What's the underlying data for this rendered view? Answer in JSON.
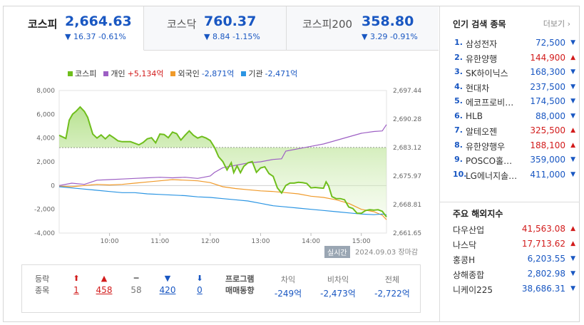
{
  "tabs": [
    {
      "name": "코스피",
      "value": "2,664.63",
      "change": "▼ 16.37 -0.61%"
    },
    {
      "name": "코스닥",
      "value": "760.37",
      "change": "▼ 8.84 -1.15%"
    },
    {
      "name": "코스피200",
      "value": "358.80",
      "change": "▼ 3.29 -0.91%"
    }
  ],
  "legend": [
    {
      "name": "코스피",
      "value": "",
      "color": "#6fbe1c"
    },
    {
      "name": "개인",
      "value": "+5,134억",
      "color": "#9d5fc4",
      "value_color": "#d21b1b"
    },
    {
      "name": "외국인",
      "value": "-2,871억",
      "color": "#f09a2a",
      "value_color": "#1957c2"
    },
    {
      "name": "기관",
      "value": "-2,471억",
      "color": "#2b95e3",
      "value_color": "#1957c2"
    }
  ],
  "chart_data": {
    "type": "line",
    "title": "",
    "x_ticks": [
      "10:00",
      "11:00",
      "12:00",
      "13:00",
      "14:00",
      "15:00"
    ],
    "y_left_ticks": [
      "8,000",
      "6,000",
      "4,000",
      "2,000",
      "0",
      "-2,000",
      "-4,000"
    ],
    "y_left_range": [
      -4000,
      8000
    ],
    "y_right_ticks": [
      "2,697.44",
      "2,690.28",
      "2,683.12",
      "2,675.97",
      "2,668.81",
      "2,661.65"
    ],
    "y_right_range": [
      2661.65,
      2697.44
    ],
    "reference_level": 2683.12,
    "x_range_minutes": [
      540,
      930
    ],
    "series": [
      {
        "name": "코스피",
        "color": "#6fbe1c",
        "axis": "right",
        "x": [
          "09:00",
          "09:08",
          "09:12",
          "09:16",
          "09:20",
          "09:25",
          "09:30",
          "09:34",
          "09:40",
          "09:45",
          "09:50",
          "09:55",
          "10:00",
          "10:05",
          "10:10",
          "10:15",
          "10:20",
          "10:25",
          "10:35",
          "10:40",
          "10:45",
          "10:50",
          "10:55",
          "11:00",
          "11:05",
          "11:10",
          "11:15",
          "11:20",
          "11:25",
          "11:30",
          "11:35",
          "11:40",
          "11:45",
          "11:50",
          "11:55",
          "12:00",
          "12:05",
          "12:10",
          "12:15",
          "12:20",
          "12:25",
          "12:28",
          "12:32",
          "12:36",
          "12:40",
          "12:45",
          "12:50",
          "12:55",
          "13:00",
          "13:05",
          "13:10",
          "13:15",
          "13:20",
          "13:25",
          "13:30",
          "13:35",
          "13:40",
          "13:45",
          "13:50",
          "13:55",
          "14:00",
          "14:05",
          "14:10",
          "14:15",
          "14:18",
          "14:21",
          "14:25",
          "14:30",
          "14:35",
          "14:40",
          "14:45",
          "14:50",
          "14:55",
          "15:00",
          "15:05",
          "15:10",
          "15:15",
          "15:20",
          "15:25",
          "15:30"
        ],
        "y": [
          2686.2,
          2685.4,
          2690.0,
          2691.5,
          2692.2,
          2693.3,
          2692.2,
          2690.7,
          2686.5,
          2685.5,
          2686.3,
          2685.3,
          2686.3,
          2685.6,
          2684.8,
          2684.6,
          2684.6,
          2684.6,
          2683.8,
          2684.4,
          2685.3,
          2685.6,
          2684.3,
          2686.5,
          2686.4,
          2685.6,
          2687.0,
          2686.6,
          2685.0,
          2686.2,
          2687.3,
          2686.2,
          2685.5,
          2685.9,
          2685.5,
          2684.9,
          2683.2,
          2680.8,
          2679.6,
          2677.5,
          2679.3,
          2676.8,
          2678.5,
          2676.8,
          2678.4,
          2679.3,
          2679.6,
          2676.9,
          2678.0,
          2678.3,
          2676.6,
          2675.9,
          2673.0,
          2671.7,
          2673.6,
          2674.2,
          2674.2,
          2674.4,
          2674.3,
          2674.1,
          2673.0,
          2673.1,
          2673.0,
          2672.9,
          2674.5,
          2673.5,
          2670.8,
          2670.3,
          2670.3,
          2670.0,
          2668.2,
          2667.8,
          2666.6,
          2666.6,
          2667.3,
          2667.5,
          2667.4,
          2667.5,
          2667.1,
          2665.7
        ]
      },
      {
        "name": "개인",
        "color": "#9d5fc4",
        "axis": "left",
        "x": [
          "09:00",
          "09:15",
          "09:30",
          "09:45",
          "10:00",
          "10:15",
          "10:30",
          "10:45",
          "11:00",
          "11:15",
          "11:30",
          "11:45",
          "12:00",
          "12:05",
          "12:15",
          "12:30",
          "12:45",
          "13:00",
          "13:15",
          "13:25",
          "13:30",
          "13:45",
          "14:00",
          "14:15",
          "14:30",
          "14:45",
          "15:00",
          "15:15",
          "15:25",
          "15:30"
        ],
        "y": [
          0,
          200,
          100,
          450,
          500,
          550,
          600,
          650,
          700,
          650,
          700,
          600,
          800,
          1100,
          1500,
          1700,
          1900,
          2000,
          2200,
          2250,
          2900,
          3100,
          3300,
          3500,
          3800,
          4100,
          4400,
          4550,
          4600,
          5134
        ]
      },
      {
        "name": "외국인",
        "color": "#f09a2a",
        "axis": "left",
        "x": [
          "09:00",
          "09:15",
          "09:30",
          "09:45",
          "10:00",
          "10:15",
          "10:30",
          "10:45",
          "11:00",
          "11:15",
          "11:30",
          "11:45",
          "12:00",
          "12:15",
          "12:30",
          "12:45",
          "13:00",
          "13:15",
          "13:30",
          "13:45",
          "14:00",
          "14:15",
          "14:30",
          "14:45",
          "15:00",
          "15:15",
          "15:25",
          "15:30"
        ],
        "y": [
          -50,
          -100,
          0,
          100,
          50,
          100,
          200,
          300,
          400,
          500,
          450,
          400,
          250,
          -100,
          -250,
          -350,
          -450,
          -500,
          -600,
          -700,
          -900,
          -1000,
          -1200,
          -1500,
          -2000,
          -2200,
          -2500,
          -2871
        ]
      },
      {
        "name": "기관",
        "color": "#2b95e3",
        "axis": "left",
        "x": [
          "09:00",
          "09:15",
          "09:30",
          "09:45",
          "10:00",
          "10:15",
          "10:30",
          "10:45",
          "11:00",
          "11:15",
          "11:30",
          "11:45",
          "12:00",
          "12:15",
          "12:30",
          "12:45",
          "13:00",
          "13:15",
          "13:30",
          "13:45",
          "14:00",
          "14:15",
          "14:30",
          "14:45",
          "15:00",
          "15:15",
          "15:25",
          "15:30"
        ],
        "y": [
          -100,
          -200,
          -300,
          -400,
          -500,
          -600,
          -600,
          -700,
          -750,
          -800,
          -850,
          -950,
          -1000,
          -1100,
          -1200,
          -1300,
          -1500,
          -1700,
          -1800,
          -1900,
          -2000,
          -2100,
          -2200,
          -2300,
          -2400,
          -2450,
          -2400,
          -2471
        ]
      }
    ]
  },
  "status": {
    "badge": "실시간",
    "date": "2024.09.03",
    "closed": "장마감"
  },
  "stats": {
    "label_1": "등락",
    "label_2": "종목",
    "counts": [
      {
        "arrow": "⬆",
        "value": "1",
        "color": "#d21b1b"
      },
      {
        "arrow": "▲",
        "value": "458",
        "color": "#d21b1b"
      },
      {
        "arrow": "━",
        "value": "58",
        "color": "#777777"
      },
      {
        "arrow": "▼",
        "value": "420",
        "color": "#1957c2"
      },
      {
        "arrow": "⬇",
        "value": "0",
        "color": "#1957c2"
      }
    ],
    "program_label_1": "프로그램",
    "program_label_2": "매매동향",
    "program": [
      {
        "label": "차익",
        "value": "-249억"
      },
      {
        "label": "비차익",
        "value": "-2,473억"
      },
      {
        "label": "전체",
        "value": "-2,722억"
      }
    ]
  },
  "popular": {
    "title": "인기 검색 종목",
    "more": "더보기",
    "items": [
      {
        "rank": "1.",
        "name": "삼성전자",
        "price": "72,500",
        "dir": "down"
      },
      {
        "rank": "2.",
        "name": "유한양행",
        "price": "144,900",
        "dir": "up"
      },
      {
        "rank": "3.",
        "name": "SK하이닉스",
        "price": "168,300",
        "dir": "down"
      },
      {
        "rank": "4.",
        "name": "현대차",
        "price": "237,500",
        "dir": "down"
      },
      {
        "rank": "5.",
        "name": "에코프로비…",
        "price": "174,500",
        "dir": "down"
      },
      {
        "rank": "6.",
        "name": "HLB",
        "price": "88,000",
        "dir": "down"
      },
      {
        "rank": "7.",
        "name": "알테오젠",
        "price": "325,500",
        "dir": "up"
      },
      {
        "rank": "8.",
        "name": "유한양행우",
        "price": "188,100",
        "dir": "up"
      },
      {
        "rank": "9.",
        "name": "POSCO홀…",
        "price": "359,000",
        "dir": "down"
      },
      {
        "rank": "10.",
        "name": "LG에너지솔…",
        "price": "411,000",
        "dir": "down"
      }
    ]
  },
  "overseas": {
    "title": "주요 해외지수",
    "items": [
      {
        "name": "다우산업",
        "value": "41,563.08",
        "dir": "up"
      },
      {
        "name": "나스닥",
        "value": "17,713.62",
        "dir": "up"
      },
      {
        "name": "홍콩H",
        "value": "6,203.55",
        "dir": "down"
      },
      {
        "name": "상해종합",
        "value": "2,802.98",
        "dir": "down"
      },
      {
        "name": "니케이225",
        "value": "38,686.31",
        "dir": "down"
      }
    ]
  }
}
